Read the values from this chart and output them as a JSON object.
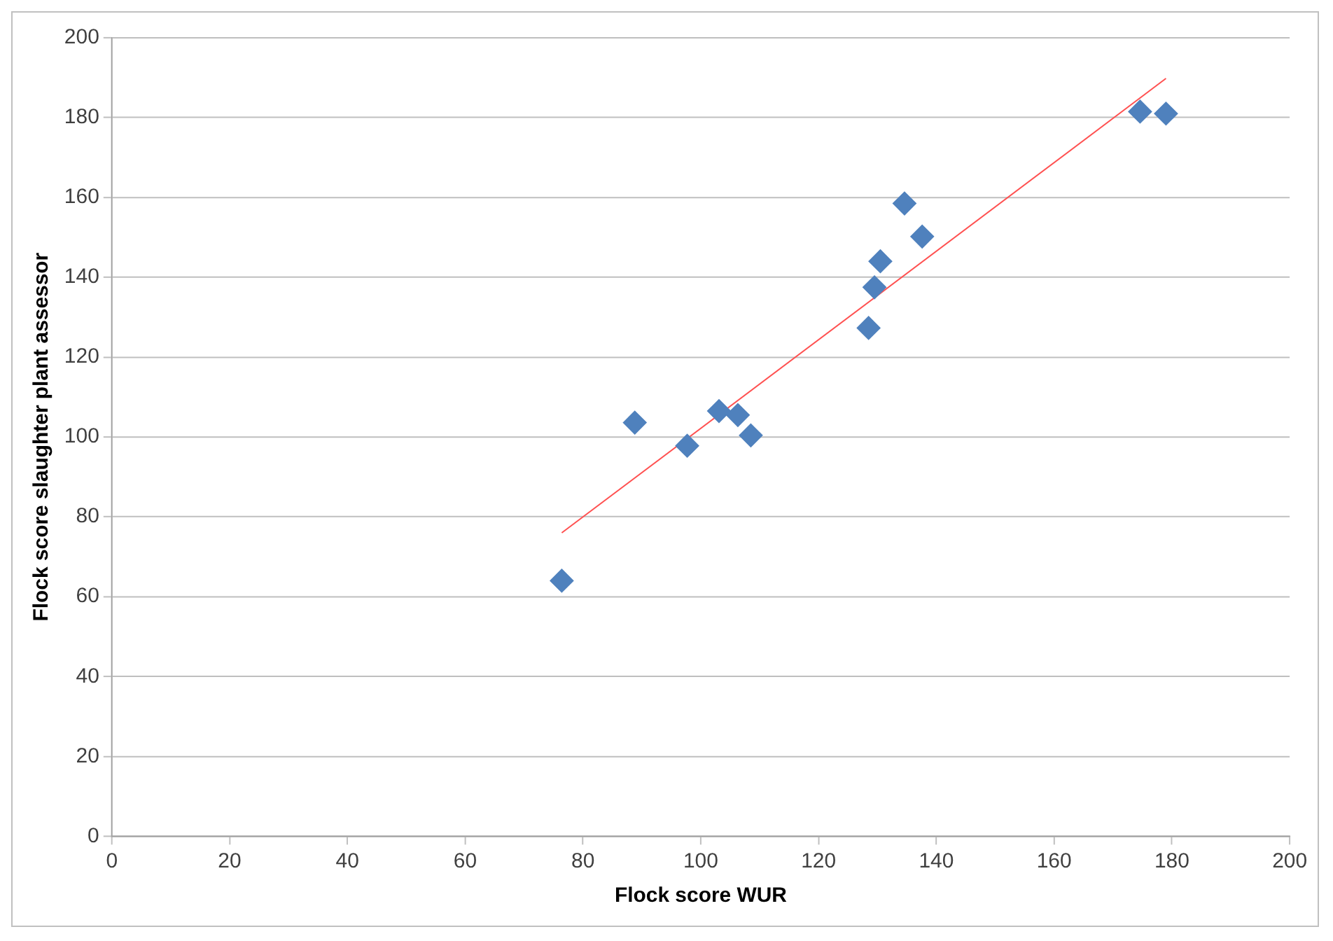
{
  "chart_data": {
    "type": "scatter",
    "xlabel": "Flock score WUR",
    "ylabel": "Flock score slaughter plant assessor",
    "xlim": [
      0,
      200
    ],
    "xticks": [
      0,
      20,
      40,
      60,
      80,
      100,
      120,
      140,
      160,
      180,
      200
    ],
    "ylim": [
      0,
      200
    ],
    "yticks": [
      0,
      20,
      40,
      60,
      80,
      100,
      120,
      140,
      160,
      180,
      200
    ],
    "grid": "y",
    "legend": false,
    "marker": "diamond",
    "series": [
      {
        "color": "#4f81bd",
        "x": [
          76.4,
          88.8,
          97.7,
          103.1,
          106.3,
          108.5,
          128.5,
          129.5,
          130.5,
          134.6,
          137.6,
          174.6,
          179
        ],
        "values": [
          64,
          103.6,
          97.8,
          106.5,
          105.5,
          100.4,
          127.3,
          137.5,
          144,
          158.5,
          150.2,
          181.5,
          181
        ]
      },
      {
        "type": "line",
        "color": "#ff5050",
        "marker": "none",
        "x": [
          76.4,
          179
        ],
        "values": [
          76,
          189.8
        ]
      }
    ]
  }
}
